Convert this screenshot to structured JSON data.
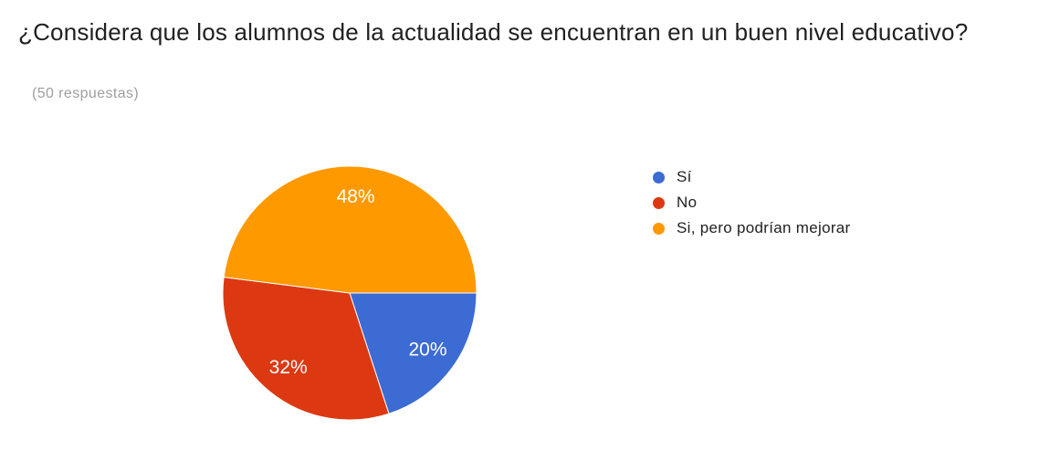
{
  "header": {
    "title": "¿Considera que los alumnos de la actualidad se encuentran en un buen nivel educativo?",
    "responses_count": "(50 respuestas)"
  },
  "chart_data": {
    "type": "pie",
    "title": "¿Considera que los alumnos de la actualidad se encuentran en un buen nivel educativo?",
    "subtitle": "(50 respuestas)",
    "total_responses": 50,
    "categories": [
      "Sí",
      "No",
      "Si, pero podrían mejorar"
    ],
    "values": [
      20,
      32,
      48
    ],
    "labels": [
      "20%",
      "32%",
      "48%"
    ],
    "unit": "%",
    "colors": [
      "#3b6bd3",
      "#dc3912",
      "#ff9900"
    ],
    "slice_border_color": "#ffffff",
    "label_color": "#ffffff",
    "start_angle_deg": 0,
    "direction": "clockwise",
    "legend_position": "right"
  }
}
